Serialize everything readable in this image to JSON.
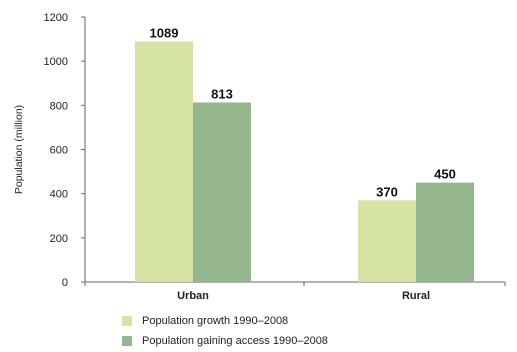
{
  "chart_data": {
    "type": "bar",
    "categories": [
      "Urban",
      "Rural"
    ],
    "series": [
      {
        "name": "Population growth 1990–2008",
        "values": [
          1089,
          370
        ],
        "color": "#d4e3a3"
      },
      {
        "name": "Population gaining access 1990–2008",
        "values": [
          813,
          450
        ],
        "color": "#95b78d"
      }
    ],
    "ylabel": "Population (million)",
    "ylim": [
      0,
      1200
    ],
    "yticks": [
      0,
      200,
      400,
      600,
      800,
      1000,
      1200
    ],
    "data_labels": true,
    "grid": false,
    "legend": "bottom-left"
  }
}
